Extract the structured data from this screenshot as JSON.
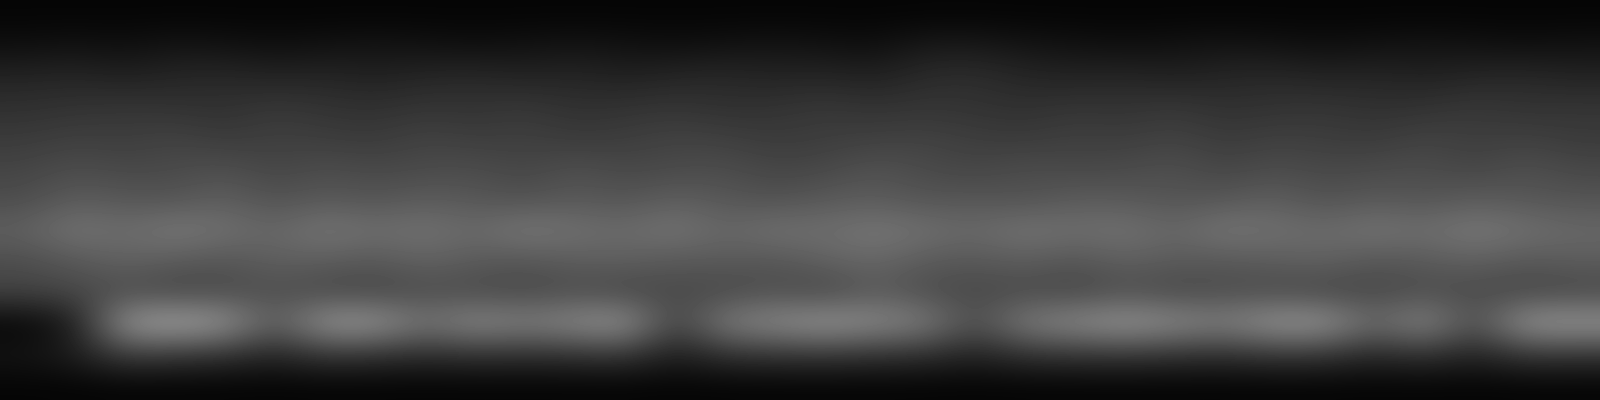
{
  "chart_data": {
    "type": "heatmap",
    "color": "gray",
    "tick_labels": false,
    "color_range": [
      0,
      1
    ],
    "cells": [
      [
        0.02,
        0.02,
        0.02,
        0.02,
        0.02,
        0.02,
        0.02,
        0.02,
        0.02,
        0.02,
        0.02,
        0.02,
        0.02,
        0.02,
        0.02,
        0.02,
        0.02,
        0.02,
        0.02,
        0.02,
        0.02,
        0.02,
        0.02,
        0.02,
        0.02,
        0.02,
        0.02,
        0.02,
        0.02,
        0.02,
        0.02,
        0.02
      ],
      [
        0.06,
        0.07,
        0.06,
        0.08,
        0.07,
        0.06,
        0.07,
        0.08,
        0.07,
        0.06,
        0.07,
        0.08,
        0.07,
        0.06,
        0.07,
        0.08,
        0.07,
        0.06,
        0.1,
        0.1,
        0.08,
        0.07,
        0.06,
        0.07,
        0.08,
        0.07,
        0.06,
        0.07,
        0.08,
        0.07,
        0.06,
        0.07
      ],
      [
        0.14,
        0.15,
        0.13,
        0.15,
        0.16,
        0.14,
        0.15,
        0.13,
        0.15,
        0.16,
        0.14,
        0.15,
        0.13,
        0.15,
        0.16,
        0.14,
        0.15,
        0.13,
        0.17,
        0.18,
        0.15,
        0.14,
        0.15,
        0.13,
        0.15,
        0.16,
        0.14,
        0.15,
        0.13,
        0.15,
        0.16,
        0.14
      ],
      [
        0.19,
        0.2,
        0.21,
        0.2,
        0.19,
        0.22,
        0.2,
        0.19,
        0.21,
        0.2,
        0.22,
        0.19,
        0.2,
        0.21,
        0.19,
        0.2,
        0.22,
        0.2,
        0.21,
        0.2,
        0.19,
        0.21,
        0.2,
        0.22,
        0.19,
        0.2,
        0.21,
        0.19,
        0.2,
        0.22,
        0.2,
        0.21
      ],
      [
        0.23,
        0.25,
        0.24,
        0.26,
        0.23,
        0.25,
        0.24,
        0.23,
        0.26,
        0.24,
        0.25,
        0.23,
        0.24,
        0.26,
        0.25,
        0.23,
        0.24,
        0.25,
        0.26,
        0.24,
        0.23,
        0.25,
        0.24,
        0.26,
        0.23,
        0.25,
        0.24,
        0.23,
        0.26,
        0.24,
        0.25,
        0.23
      ],
      [
        0.27,
        0.3,
        0.28,
        0.29,
        0.31,
        0.27,
        0.3,
        0.28,
        0.29,
        0.3,
        0.27,
        0.31,
        0.28,
        0.29,
        0.3,
        0.27,
        0.28,
        0.32,
        0.29,
        0.27,
        0.3,
        0.28,
        0.29,
        0.31,
        0.27,
        0.3,
        0.28,
        0.29,
        0.3,
        0.27,
        0.31,
        0.28
      ],
      [
        0.3,
        0.36,
        0.34,
        0.33,
        0.37,
        0.32,
        0.35,
        0.33,
        0.36,
        0.34,
        0.32,
        0.35,
        0.33,
        0.37,
        0.34,
        0.32,
        0.35,
        0.36,
        0.33,
        0.34,
        0.32,
        0.36,
        0.35,
        0.33,
        0.34,
        0.37,
        0.32,
        0.35,
        0.33,
        0.36,
        0.34,
        0.33
      ],
      [
        0.38,
        0.46,
        0.42,
        0.48,
        0.44,
        0.4,
        0.47,
        0.43,
        0.45,
        0.41,
        0.48,
        0.44,
        0.42,
        0.46,
        0.4,
        0.45,
        0.43,
        0.47,
        0.44,
        0.41,
        0.46,
        0.43,
        0.45,
        0.4,
        0.47,
        0.44,
        0.42,
        0.46,
        0.43,
        0.48,
        0.44,
        0.41
      ],
      [
        0.3,
        0.34,
        0.38,
        0.35,
        0.33,
        0.37,
        0.36,
        0.34,
        0.38,
        0.35,
        0.33,
        0.36,
        0.37,
        0.34,
        0.35,
        0.33,
        0.38,
        0.4,
        0.35,
        0.34,
        0.36,
        0.33,
        0.37,
        0.35,
        0.34,
        0.36,
        0.38,
        0.33,
        0.35,
        0.37,
        0.34,
        0.36
      ],
      [
        0.26,
        0.28,
        0.3,
        0.27,
        0.29,
        0.31,
        0.28,
        0.27,
        0.3,
        0.29,
        0.28,
        0.3,
        0.27,
        0.29,
        0.28,
        0.31,
        0.27,
        0.35,
        0.3,
        0.28,
        0.29,
        0.27,
        0.31,
        0.28,
        0.3,
        0.29,
        0.27,
        0.28,
        0.3,
        0.29,
        0.27,
        0.28
      ],
      [
        0.02,
        0.1,
        0.6,
        0.65,
        0.6,
        0.35,
        0.6,
        0.6,
        0.45,
        0.55,
        0.5,
        0.55,
        0.6,
        0.25,
        0.5,
        0.55,
        0.6,
        0.55,
        0.5,
        0.3,
        0.5,
        0.55,
        0.6,
        0.55,
        0.5,
        0.6,
        0.6,
        0.4,
        0.55,
        0.3,
        0.6,
        0.6
      ],
      [
        0.08,
        0.12,
        0.25,
        0.22,
        0.2,
        0.15,
        0.22,
        0.2,
        0.18,
        0.2,
        0.19,
        0.2,
        0.22,
        0.12,
        0.2,
        0.21,
        0.22,
        0.2,
        0.19,
        0.14,
        0.2,
        0.21,
        0.22,
        0.2,
        0.19,
        0.22,
        0.21,
        0.16,
        0.2,
        0.14,
        0.22,
        0.21
      ],
      [
        0.02,
        0.02,
        0.02,
        0.02,
        0.02,
        0.02,
        0.02,
        0.02,
        0.02,
        0.02,
        0.02,
        0.02,
        0.02,
        0.02,
        0.02,
        0.02,
        0.02,
        0.02,
        0.02,
        0.02,
        0.02,
        0.02,
        0.02,
        0.02,
        0.02,
        0.02,
        0.02,
        0.02,
        0.02,
        0.02,
        0.02,
        0.02
      ]
    ]
  }
}
